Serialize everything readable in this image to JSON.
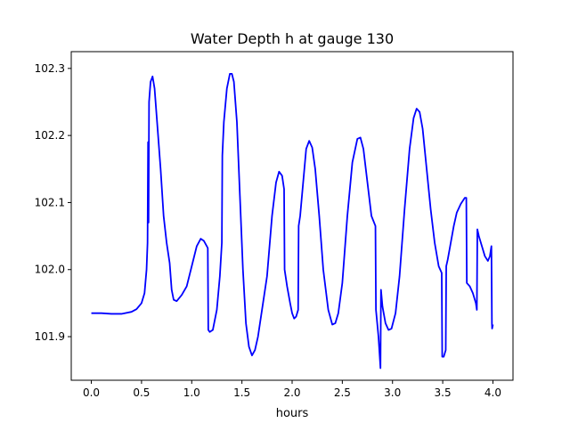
{
  "chart_data": {
    "type": "line",
    "title": "Water Depth h at gauge 130",
    "xlabel": "hours",
    "ylabel": "",
    "xlim": [
      -0.2,
      4.2
    ],
    "ylim": [
      101.835,
      102.325
    ],
    "grid": false,
    "legend": "none",
    "x_ticks": [
      0.0,
      0.5,
      1.0,
      1.5,
      2.0,
      2.5,
      3.0,
      3.5,
      4.0
    ],
    "x_tick_labels": [
      "0.0",
      "0.5",
      "1.0",
      "1.5",
      "2.0",
      "2.5",
      "3.0",
      "3.5",
      "4.0"
    ],
    "y_ticks": [
      101.9,
      102.0,
      102.1,
      102.2,
      102.3
    ],
    "y_tick_labels": [
      "101.9",
      "102.0",
      "102.1",
      "102.2",
      "102.3"
    ],
    "series": [
      {
        "color": "#0000ff",
        "points": [
          [
            0.0,
            101.935
          ],
          [
            0.1,
            101.935
          ],
          [
            0.2,
            101.934
          ],
          [
            0.3,
            101.934
          ],
          [
            0.4,
            101.937
          ],
          [
            0.45,
            101.941
          ],
          [
            0.5,
            101.95
          ],
          [
            0.53,
            101.965
          ],
          [
            0.55,
            102.0
          ],
          [
            0.56,
            102.04
          ],
          [
            0.565,
            102.19
          ],
          [
            0.57,
            102.07
          ],
          [
            0.575,
            102.25
          ],
          [
            0.59,
            102.28
          ],
          [
            0.61,
            102.288
          ],
          [
            0.63,
            102.27
          ],
          [
            0.66,
            102.21
          ],
          [
            0.69,
            102.15
          ],
          [
            0.72,
            102.08
          ],
          [
            0.75,
            102.04
          ],
          [
            0.78,
            102.01
          ],
          [
            0.8,
            101.97
          ],
          [
            0.82,
            101.955
          ],
          [
            0.85,
            101.953
          ],
          [
            0.9,
            101.962
          ],
          [
            0.95,
            101.975
          ],
          [
            1.0,
            102.005
          ],
          [
            1.05,
            102.035
          ],
          [
            1.09,
            102.046
          ],
          [
            1.12,
            102.043
          ],
          [
            1.15,
            102.035
          ],
          [
            1.16,
            102.032
          ],
          [
            1.165,
            101.91
          ],
          [
            1.18,
            101.907
          ],
          [
            1.21,
            101.91
          ],
          [
            1.25,
            101.94
          ],
          [
            1.28,
            101.99
          ],
          [
            1.3,
            102.04
          ],
          [
            1.305,
            102.17
          ],
          [
            1.32,
            102.22
          ],
          [
            1.35,
            102.27
          ],
          [
            1.38,
            102.292
          ],
          [
            1.4,
            102.292
          ],
          [
            1.42,
            102.28
          ],
          [
            1.45,
            102.22
          ],
          [
            1.48,
            102.11
          ],
          [
            1.51,
            102.0
          ],
          [
            1.54,
            101.92
          ],
          [
            1.57,
            101.885
          ],
          [
            1.6,
            101.872
          ],
          [
            1.63,
            101.88
          ],
          [
            1.66,
            101.9
          ],
          [
            1.7,
            101.94
          ],
          [
            1.75,
            101.99
          ],
          [
            1.8,
            102.08
          ],
          [
            1.84,
            102.13
          ],
          [
            1.87,
            102.146
          ],
          [
            1.9,
            102.14
          ],
          [
            1.92,
            102.12
          ],
          [
            1.925,
            102.0
          ],
          [
            1.95,
            101.975
          ],
          [
            1.98,
            101.95
          ],
          [
            2.0,
            101.935
          ],
          [
            2.02,
            101.927
          ],
          [
            2.04,
            101.93
          ],
          [
            2.06,
            101.94
          ],
          [
            2.065,
            102.065
          ],
          [
            2.08,
            102.08
          ],
          [
            2.11,
            102.13
          ],
          [
            2.14,
            102.18
          ],
          [
            2.17,
            102.192
          ],
          [
            2.2,
            102.182
          ],
          [
            2.23,
            102.15
          ],
          [
            2.27,
            102.08
          ],
          [
            2.31,
            102.0
          ],
          [
            2.36,
            101.94
          ],
          [
            2.4,
            101.918
          ],
          [
            2.43,
            101.92
          ],
          [
            2.46,
            101.935
          ],
          [
            2.5,
            101.98
          ],
          [
            2.55,
            102.08
          ],
          [
            2.6,
            102.16
          ],
          [
            2.65,
            102.195
          ],
          [
            2.68,
            102.197
          ],
          [
            2.71,
            102.18
          ],
          [
            2.75,
            102.13
          ],
          [
            2.79,
            102.08
          ],
          [
            2.83,
            102.065
          ],
          [
            2.835,
            101.94
          ],
          [
            2.86,
            101.9
          ],
          [
            2.88,
            101.853
          ],
          [
            2.885,
            101.97
          ],
          [
            2.9,
            101.945
          ],
          [
            2.93,
            101.92
          ],
          [
            2.96,
            101.91
          ],
          [
            2.99,
            101.912
          ],
          [
            3.03,
            101.935
          ],
          [
            3.07,
            101.99
          ],
          [
            3.12,
            102.09
          ],
          [
            3.17,
            102.18
          ],
          [
            3.21,
            102.226
          ],
          [
            3.24,
            102.24
          ],
          [
            3.27,
            102.235
          ],
          [
            3.3,
            102.21
          ],
          [
            3.34,
            102.15
          ],
          [
            3.38,
            102.09
          ],
          [
            3.42,
            102.04
          ],
          [
            3.46,
            102.005
          ],
          [
            3.49,
            101.995
          ],
          [
            3.495,
            101.87
          ],
          [
            3.51,
            101.87
          ],
          [
            3.53,
            101.88
          ],
          [
            3.535,
            102.005
          ],
          [
            3.55,
            102.015
          ],
          [
            3.58,
            102.04
          ],
          [
            3.61,
            102.065
          ],
          [
            3.64,
            102.085
          ],
          [
            3.68,
            102.098
          ],
          [
            3.72,
            102.107
          ],
          [
            3.735,
            102.107
          ],
          [
            3.74,
            101.98
          ],
          [
            3.77,
            101.975
          ],
          [
            3.8,
            101.965
          ],
          [
            3.83,
            101.95
          ],
          [
            3.84,
            101.94
          ],
          [
            3.845,
            102.06
          ],
          [
            3.86,
            102.05
          ],
          [
            3.89,
            102.035
          ],
          [
            3.92,
            102.02
          ],
          [
            3.95,
            102.013
          ],
          [
            3.97,
            102.02
          ],
          [
            3.985,
            102.035
          ],
          [
            3.99,
            101.92
          ],
          [
            3.992,
            101.912
          ],
          [
            4.0,
            101.918
          ]
        ]
      }
    ]
  }
}
